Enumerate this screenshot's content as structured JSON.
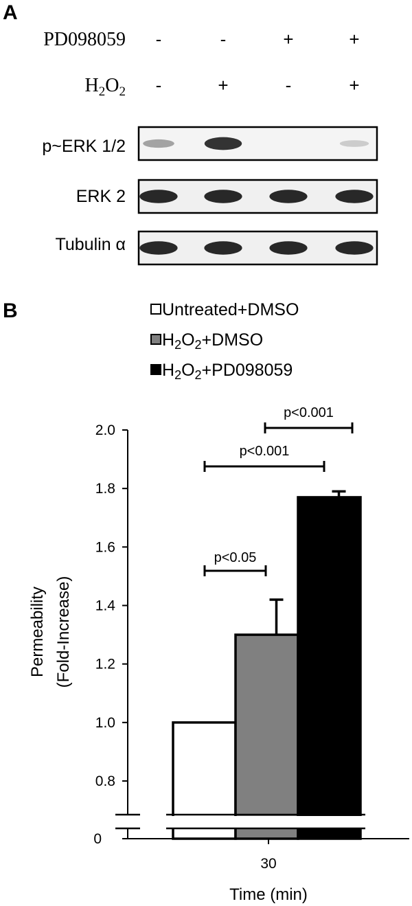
{
  "panel_a": {
    "letter": "A",
    "treatments": [
      {
        "label": "PD098059",
        "signs": [
          "-",
          "-",
          "+",
          "+"
        ]
      },
      {
        "label_main": "H",
        "label_sub1": "2",
        "label_mid": "O",
        "label_sub2": "2",
        "signs": [
          "-",
          "+",
          "-",
          "+"
        ]
      }
    ],
    "blots": [
      {
        "label": "p~ERK 1/2",
        "band_intensity": [
          0.35,
          0.9,
          0.0,
          0.15
        ]
      },
      {
        "label": "ERK 2",
        "band_intensity": [
          0.95,
          0.95,
          0.95,
          0.95
        ]
      },
      {
        "label": "Tubulin α",
        "band_intensity": [
          0.95,
          0.95,
          0.95,
          0.95
        ]
      }
    ]
  },
  "panel_b": {
    "letter": "B",
    "legend": [
      {
        "prefix": "",
        "sub": "",
        "suffix": "Untreated+DMSO",
        "color": "#ffffff"
      },
      {
        "prefix": "H",
        "sub": "2",
        "mid": "O",
        "sub2": "2",
        "suffix": "+DMSO",
        "color": "#808080"
      },
      {
        "prefix": "H",
        "sub": "2",
        "mid": "O",
        "sub2": "2",
        "suffix": "+PD098059",
        "color": "#000000"
      }
    ],
    "significance": [
      {
        "label": "p<0.001",
        "from": 1,
        "to": 2
      },
      {
        "label": "p<0.001",
        "from": 0,
        "to": 2
      },
      {
        "label": "p<0.05",
        "from": 0,
        "to": 1
      }
    ]
  },
  "chart_data": {
    "type": "bar",
    "categories": [
      "30"
    ],
    "series": [
      {
        "name": "Untreated+DMSO",
        "values": [
          1.0
        ],
        "error": [
          0.0
        ],
        "color": "#ffffff"
      },
      {
        "name": "H2O2+DMSO",
        "values": [
          1.3
        ],
        "error": [
          0.12
        ],
        "color": "#808080"
      },
      {
        "name": "H2O2+PD098059",
        "values": [
          1.77
        ],
        "error": [
          0.02
        ],
        "color": "#000000"
      }
    ],
    "xlabel": "Time (min)",
    "ylabel_line1": "Permeability",
    "ylabel_line2": "(Fold-Increase)",
    "ylim": [
      0.8,
      2.0
    ],
    "axis_break": true,
    "yticks": [
      "0",
      "0.8",
      "1.0",
      "1.2",
      "1.4",
      "1.6",
      "1.8",
      "2.0"
    ],
    "grid": false,
    "legend_position": "top"
  }
}
